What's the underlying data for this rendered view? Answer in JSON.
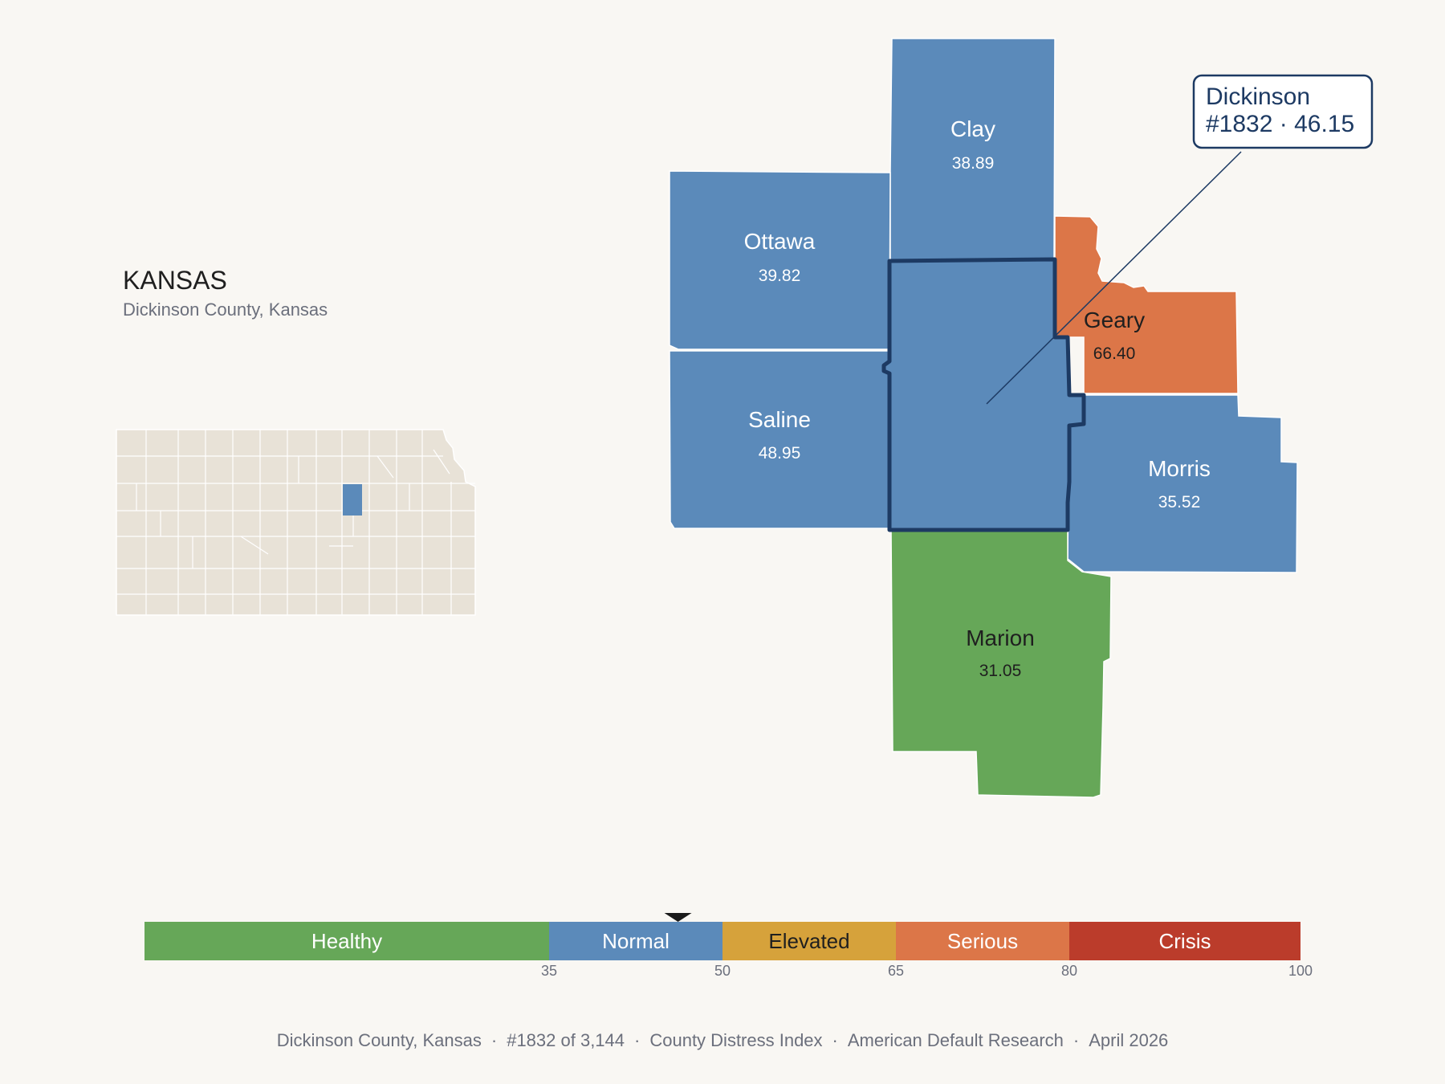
{
  "header": {
    "state": "KANSAS",
    "subtitle": "Dickinson County, Kansas"
  },
  "callout": {
    "name": "Dickinson",
    "detail": "#1832 · 46.15"
  },
  "counties": [
    {
      "id": "clay",
      "name": "Clay",
      "value": "38.89",
      "band": "normal"
    },
    {
      "id": "ottawa",
      "name": "Ottawa",
      "value": "39.82",
      "band": "normal"
    },
    {
      "id": "saline",
      "name": "Saline",
      "value": "48.95",
      "band": "normal"
    },
    {
      "id": "geary",
      "name": "Geary",
      "value": "66.40",
      "band": "serious"
    },
    {
      "id": "morris",
      "name": "Morris",
      "value": "35.52",
      "band": "normal"
    },
    {
      "id": "marion",
      "name": "Marion",
      "value": "31.05",
      "band": "healthy"
    },
    {
      "id": "dickinson",
      "name": "Dickinson",
      "value": "46.15",
      "band": "normal",
      "selected": true
    }
  ],
  "legend": {
    "bands": [
      {
        "label": "Healthy",
        "from": 0,
        "to": 35,
        "color": "#66a758"
      },
      {
        "label": "Normal",
        "from": 35,
        "to": 50,
        "color": "#5b8aba"
      },
      {
        "label": "Elevated",
        "from": 50,
        "to": 65,
        "color": "#d6a23b"
      },
      {
        "label": "Serious",
        "from": 65,
        "to": 80,
        "color": "#dc7648"
      },
      {
        "label": "Crisis",
        "from": 80,
        "to": 100,
        "color": "#bb3c2b"
      }
    ],
    "ticks": [
      "35",
      "50",
      "65",
      "80",
      "100"
    ],
    "marker_value": 46.15
  },
  "colors": {
    "background": "#f9f7f3",
    "highlight_outline": "#1d3a63",
    "inset_fill": "#e8e2d7",
    "inset_highlight": "#5b8aba"
  },
  "footer": {
    "county": "Dickinson County, Kansas",
    "rank": "#1832 of 3,144",
    "index": "County Distress Index",
    "source": "American Default Research",
    "date": "April 2026"
  }
}
